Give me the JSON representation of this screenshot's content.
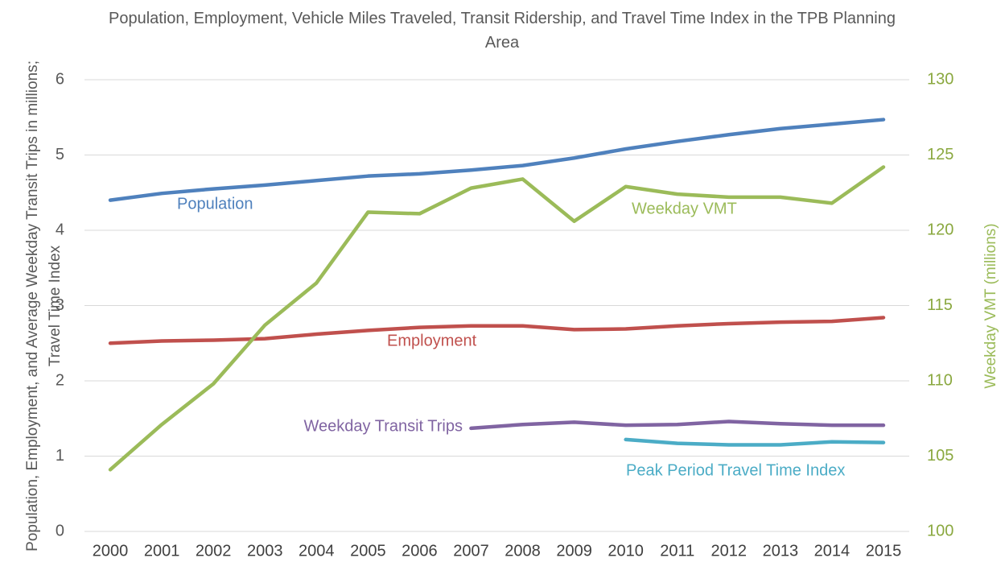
{
  "chart_data": {
    "type": "line",
    "title": "Population, Employment, Vehicle Miles Traveled, Transit Ridership, and Travel Time Index in the TPB Planning Area",
    "ylabel": "Population, Employment, and Average Weekday Transit Trips in millions; Travel Time Index",
    "y2label": "Weekday VMT (millions)",
    "categories": [
      "2000",
      "2001",
      "2002",
      "2003",
      "2004",
      "2005",
      "2006",
      "2007",
      "2008",
      "2009",
      "2010",
      "2011",
      "2012",
      "2013",
      "2014",
      "2015"
    ],
    "ylim": [
      0,
      6
    ],
    "yticks": [
      0,
      1,
      2,
      3,
      4,
      5,
      6
    ],
    "y2lim": [
      100,
      130
    ],
    "y2ticks": [
      100,
      105,
      110,
      115,
      120,
      125,
      130
    ],
    "grid": true,
    "series": [
      {
        "name": "Population",
        "color": "#4f81bd",
        "values": [
          4.4,
          4.49,
          4.55,
          4.6,
          4.66,
          4.72,
          4.75,
          4.8,
          4.86,
          4.96,
          5.08,
          5.18,
          5.27,
          5.35,
          5.41,
          5.47
        ]
      },
      {
        "name": "Employment",
        "color": "#c0504d",
        "values": [
          2.5,
          2.53,
          2.54,
          2.56,
          2.62,
          2.67,
          2.71,
          2.73,
          2.73,
          2.68,
          2.69,
          2.73,
          2.76,
          2.78,
          2.79,
          2.84
        ]
      },
      {
        "name": "Weekday VMT",
        "color": "#9bbb59",
        "axis": "y2",
        "values": [
          104.1,
          107.1,
          109.8,
          113.7,
          116.5,
          121.2,
          121.1,
          122.8,
          123.4,
          120.6,
          122.9,
          122.4,
          122.2,
          122.2,
          121.8,
          124.2
        ]
      },
      {
        "name": "Weekday Transit Trips",
        "color": "#8064a2",
        "values": [
          null,
          null,
          null,
          null,
          null,
          null,
          null,
          1.37,
          1.42,
          1.45,
          1.41,
          1.42,
          1.46,
          1.43,
          1.41,
          1.41
        ]
      },
      {
        "name": "Peak Period Travel Time Index",
        "color": "#4bacc6",
        "values": [
          null,
          null,
          null,
          null,
          null,
          null,
          null,
          null,
          null,
          null,
          1.22,
          1.17,
          1.15,
          1.15,
          1.19,
          1.18
        ]
      }
    ]
  }
}
